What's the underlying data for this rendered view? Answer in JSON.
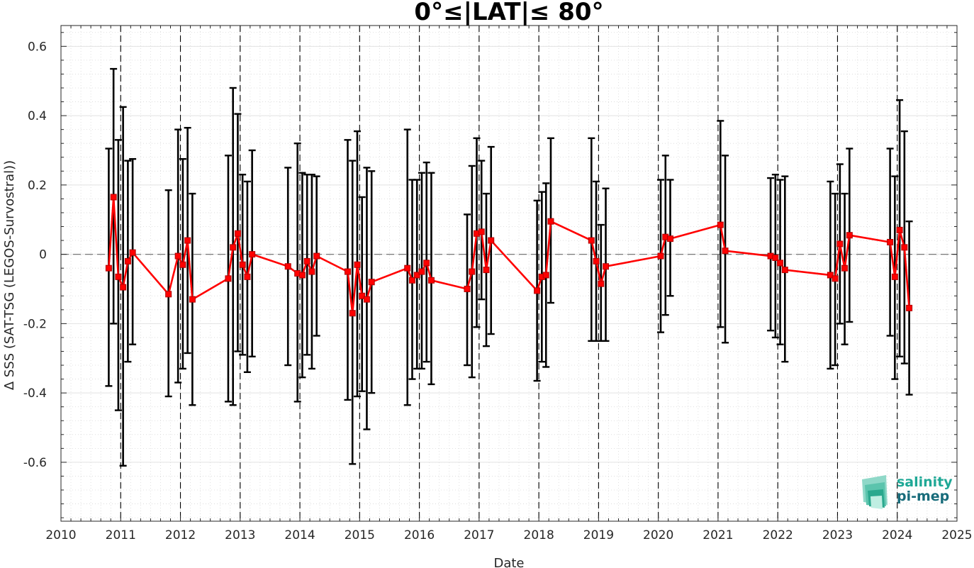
{
  "chart_data": {
    "type": "line",
    "title": "0°≤|LAT|≤ 80°",
    "xlabel": "Date",
    "ylabel": "Δ SSS (SAT-TSG (LEGOS-Survostral))",
    "xlim": [
      2010,
      2025
    ],
    "ylim": [
      -0.77,
      0.66
    ],
    "xticks": [
      "2010",
      "2011",
      "2012",
      "2013",
      "2014",
      "2015",
      "2016",
      "2017",
      "2018",
      "2019",
      "2020",
      "2021",
      "2022",
      "2023",
      "2024",
      "2025"
    ],
    "yticks": [
      "-0.6",
      "-0.4",
      "-0.2",
      "0",
      "0.2",
      "0.4",
      "0.6"
    ],
    "ytick_values": [
      -0.6,
      -0.4,
      -0.2,
      0,
      0.2,
      0.4,
      0.6
    ],
    "grid": true,
    "minor_grid": true,
    "vertical_year_lines": [
      2011,
      2012,
      2013,
      2014,
      2015,
      2016,
      2017,
      2018,
      2019,
      2020,
      2021,
      2022,
      2023,
      2024
    ],
    "zero_line": 0,
    "series": [
      {
        "color": "#ff0000",
        "marker": "square",
        "x": [
          2010.8,
          2010.88,
          2010.96,
          2011.04,
          2011.12,
          2011.2,
          2011.8,
          2011.96,
          2012.04,
          2012.12,
          2012.2,
          2012.8,
          2012.88,
          2012.96,
          2013.04,
          2013.12,
          2013.2,
          2013.8,
          2013.96,
          2014.04,
          2014.12,
          2014.2,
          2014.28,
          2014.8,
          2014.88,
          2014.96,
          2015.04,
          2015.12,
          2015.2,
          2015.8,
          2015.88,
          2015.96,
          2016.04,
          2016.12,
          2016.2,
          2016.8,
          2016.88,
          2016.96,
          2017.04,
          2017.12,
          2017.2,
          2017.97,
          2018.05,
          2018.12,
          2018.2,
          2018.88,
          2018.96,
          2019.04,
          2019.12,
          2020.04,
          2020.12,
          2020.2,
          2021.04,
          2021.12,
          2021.88,
          2021.96,
          2022.04,
          2022.12,
          2022.88,
          2022.96,
          2023.04,
          2023.12,
          2023.2,
          2023.88,
          2023.96,
          2024.04,
          2024.12,
          2024.2
        ],
        "y": [
          -0.04,
          0.165,
          -0.065,
          -0.095,
          -0.02,
          0.005,
          -0.115,
          -0.005,
          -0.03,
          0.04,
          -0.13,
          -0.07,
          0.02,
          0.06,
          -0.03,
          -0.065,
          0.0,
          -0.035,
          -0.055,
          -0.06,
          -0.02,
          -0.05,
          -0.005,
          -0.05,
          -0.17,
          -0.03,
          -0.12,
          -0.13,
          -0.08,
          -0.04,
          -0.075,
          -0.06,
          -0.05,
          -0.025,
          -0.075,
          -0.1,
          -0.05,
          0.06,
          0.065,
          -0.045,
          0.04,
          -0.105,
          -0.065,
          -0.06,
          0.095,
          0.04,
          -0.02,
          -0.085,
          -0.035,
          -0.005,
          0.05,
          0.045,
          0.085,
          0.01,
          -0.005,
          -0.01,
          -0.025,
          -0.045,
          -0.06,
          -0.07,
          0.03,
          -0.04,
          0.055,
          0.035,
          -0.065,
          0.07,
          0.02,
          -0.155
        ],
        "err_low": [
          -0.38,
          -0.2,
          -0.45,
          -0.61,
          -0.31,
          -0.26,
          -0.41,
          -0.37,
          -0.33,
          -0.285,
          -0.435,
          -0.425,
          -0.435,
          -0.28,
          -0.29,
          -0.34,
          -0.295,
          -0.32,
          -0.425,
          -0.355,
          -0.29,
          -0.33,
          -0.235,
          -0.42,
          -0.605,
          -0.41,
          -0.395,
          -0.505,
          -0.4,
          -0.435,
          -0.36,
          -0.33,
          -0.33,
          -0.31,
          -0.375,
          -0.32,
          -0.355,
          -0.21,
          -0.13,
          -0.265,
          -0.23,
          -0.365,
          -0.31,
          -0.325,
          -0.14,
          -0.25,
          -0.25,
          -0.25,
          -0.25,
          -0.225,
          -0.175,
          -0.12,
          -0.21,
          -0.255,
          -0.22,
          -0.24,
          -0.26,
          -0.31,
          -0.33,
          -0.32,
          -0.2,
          -0.26,
          -0.195,
          -0.235,
          -0.36,
          -0.295,
          -0.315,
          -0.405
        ],
        "err_high": [
          0.305,
          0.535,
          0.33,
          0.425,
          0.27,
          0.275,
          0.185,
          0.36,
          0.275,
          0.365,
          0.175,
          0.285,
          0.48,
          0.405,
          0.23,
          0.21,
          0.3,
          0.25,
          0.32,
          0.235,
          0.23,
          0.23,
          0.225,
          0.33,
          0.27,
          0.355,
          0.165,
          0.25,
          0.24,
          0.36,
          0.215,
          0.215,
          0.235,
          0.265,
          0.235,
          0.115,
          0.255,
          0.335,
          0.27,
          0.175,
          0.31,
          0.155,
          0.18,
          0.205,
          0.335,
          0.335,
          0.21,
          0.085,
          0.19,
          0.215,
          0.285,
          0.215,
          0.385,
          0.285,
          0.22,
          0.23,
          0.215,
          0.225,
          0.21,
          0.175,
          0.26,
          0.175,
          0.305,
          0.305,
          0.225,
          0.445,
          0.355,
          0.095
        ],
        "err_color": "#000000"
      }
    ]
  },
  "logo": {
    "line1": "salinity",
    "line2": "pi-mep",
    "color1": "#1fa896",
    "color2": "#176b7a"
  }
}
